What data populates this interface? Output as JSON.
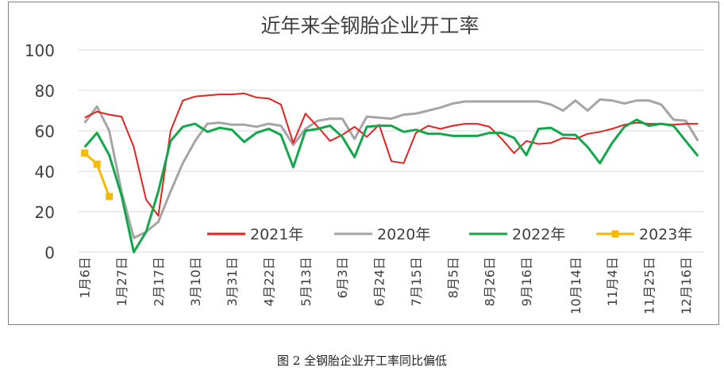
{
  "chart_data": {
    "type": "line",
    "title": "近年来全钢胎企业开工率",
    "xlabel": "",
    "ylabel": "",
    "ylim": [
      0,
      100
    ],
    "yticks": [
      "0",
      "20",
      "40",
      "60",
      "80",
      "100"
    ],
    "grid": "horizontal",
    "legend_position": "inside-bottom",
    "x_tick_labels": [
      "1月6日",
      "1月27日",
      "2月17日",
      "3月10日",
      "3月31日",
      "4月22日",
      "5月13日",
      "6月3日",
      "6月24日",
      "7月15日",
      "8月5日",
      "8月26日",
      "9月16日",
      "10月14日",
      "11月4日",
      "11月25日",
      "12月16日"
    ],
    "x_tick_weeks": [
      0,
      3,
      6,
      9,
      12,
      15,
      18,
      21,
      24,
      27,
      30,
      33,
      36,
      40,
      43,
      46,
      49
    ],
    "series": [
      {
        "name": "2021年",
        "color": "#e8201e",
        "marker": "none",
        "values": [
          66.5,
          69.5,
          68,
          67,
          52,
          26,
          18,
          60,
          75,
          77,
          77.5,
          78,
          78,
          78.5,
          76.5,
          76,
          73,
          54,
          68.5,
          62,
          55,
          58,
          62,
          57,
          63,
          45,
          44,
          59,
          62.5,
          61,
          62.5,
          63.5,
          63.5,
          62,
          56,
          49,
          55,
          53.5,
          54,
          56.5,
          56,
          58.5,
          59.5,
          61,
          63,
          64,
          63.5,
          63.5,
          63,
          63.5,
          63.5
        ]
      },
      {
        "name": "2020年",
        "color": "#a5a5a5",
        "marker": "none",
        "values": [
          64,
          72,
          60,
          30,
          7,
          10,
          15,
          30,
          44,
          55,
          63.5,
          64,
          63,
          63,
          62,
          63.5,
          62.5,
          53,
          61,
          65,
          66,
          66,
          56,
          67,
          66.5,
          66,
          68,
          68.5,
          70,
          71.5,
          73.5,
          74.5,
          74.5,
          74.5,
          74.5,
          74.5,
          74.5,
          74.5,
          73,
          70,
          75,
          70,
          75.5,
          75,
          73.5,
          75,
          75,
          73,
          65.5,
          65,
          55
        ]
      },
      {
        "name": "2022年",
        "color": "#12a84a",
        "marker": "none",
        "values": [
          52,
          59,
          48,
          28,
          0,
          10,
          30,
          55,
          62,
          63.5,
          59.5,
          61.5,
          60.5,
          54.5,
          59,
          61,
          58,
          42,
          60,
          61,
          62.5,
          57,
          47,
          62,
          62.5,
          62.5,
          59.5,
          60.5,
          58.5,
          58.5,
          57.5,
          57.5,
          57.5,
          59,
          59,
          56.5,
          48,
          61,
          61.5,
          58,
          58,
          52,
          44,
          54,
          62,
          65.5,
          62.5,
          63.5,
          62.5,
          55,
          47.5
        ]
      },
      {
        "name": "2023年",
        "color": "#f6bb00",
        "marker": "square",
        "values": [
          49,
          43.5,
          27.5
        ]
      }
    ]
  },
  "caption": "图 2  全钢胎企业开工率同比偏低"
}
